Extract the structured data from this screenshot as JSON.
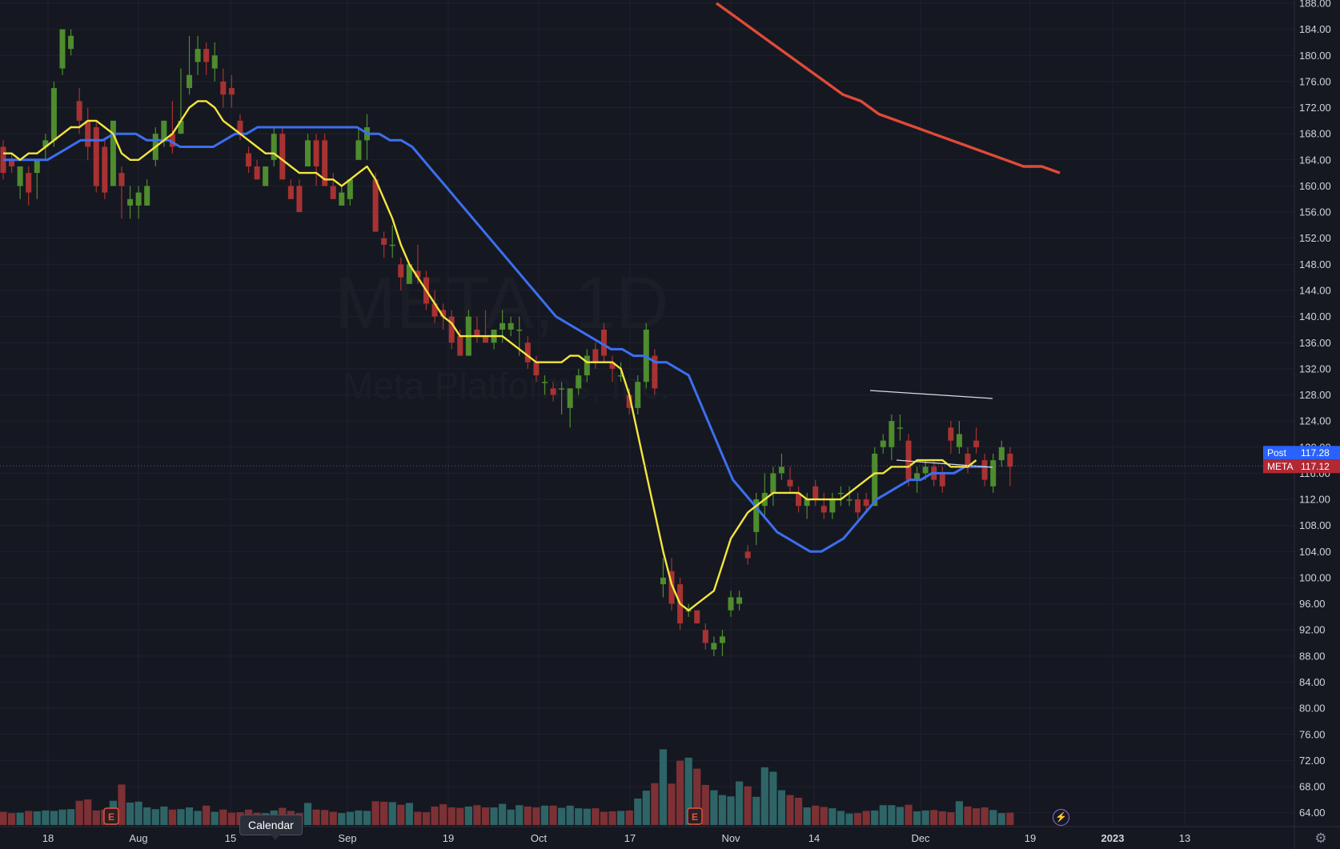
{
  "chart_data": {
    "type": "candlestick",
    "symbol": "META",
    "interval": "1D",
    "watermark_line1": "META, 1D",
    "watermark_line2": "Meta Platforms, Inc.",
    "price_axis_ticks": [
      "188.00",
      "184.00",
      "180.00",
      "176.00",
      "172.00",
      "168.00",
      "164.00",
      "160.00",
      "156.00",
      "152.00",
      "148.00",
      "144.00",
      "140.00",
      "136.00",
      "132.00",
      "128.00",
      "124.00",
      "120.00",
      "116.00",
      "112.00",
      "108.00",
      "104.00",
      "100.00",
      "96.00",
      "92.00",
      "88.00",
      "84.00",
      "80.00",
      "76.00",
      "72.00",
      "68.00",
      "64.00"
    ],
    "time_axis_labels": [
      "18",
      "Aug",
      "15",
      "Sep",
      "19",
      "Oct",
      "17",
      "Nov",
      "14",
      "Dec",
      "19",
      "2023",
      "13"
    ],
    "ylim": [
      62,
      188
    ],
    "post_label": "Post",
    "post_price": 117.28,
    "last_label": "META",
    "last_price": 117.12,
    "candles": [
      {
        "o": 166,
        "h": 167,
        "l": 161,
        "c": 162
      },
      {
        "o": 164,
        "h": 165,
        "l": 162,
        "c": 163
      },
      {
        "o": 160,
        "h": 163,
        "l": 158,
        "c": 163
      },
      {
        "o": 162,
        "h": 163,
        "l": 157,
        "c": 159
      },
      {
        "o": 162,
        "h": 164,
        "l": 158,
        "c": 164
      },
      {
        "o": 166,
        "h": 168,
        "l": 164,
        "c": 167
      },
      {
        "o": 167,
        "h": 176,
        "l": 166,
        "c": 175
      },
      {
        "o": 178,
        "h": 184,
        "l": 177,
        "c": 184
      },
      {
        "o": 181,
        "h": 184,
        "l": 180,
        "c": 183
      },
      {
        "o": 173,
        "h": 175,
        "l": 168,
        "c": 170
      },
      {
        "o": 170,
        "h": 172,
        "l": 164,
        "c": 166
      },
      {
        "o": 169,
        "h": 170,
        "l": 159,
        "c": 160
      },
      {
        "o": 166,
        "h": 167,
        "l": 158,
        "c": 159
      },
      {
        "o": 160,
        "h": 170,
        "l": 160,
        "c": 170
      },
      {
        "o": 162,
        "h": 163,
        "l": 155,
        "c": 160
      },
      {
        "o": 157,
        "h": 160,
        "l": 155,
        "c": 158
      },
      {
        "o": 157,
        "h": 160,
        "l": 155,
        "c": 159
      },
      {
        "o": 157,
        "h": 161,
        "l": 157,
        "c": 160
      },
      {
        "o": 164,
        "h": 169,
        "l": 163,
        "c": 168
      },
      {
        "o": 167,
        "h": 170,
        "l": 166,
        "c": 170
      },
      {
        "o": 168,
        "h": 173,
        "l": 165,
        "c": 166
      },
      {
        "o": 168,
        "h": 178,
        "l": 168,
        "c": 170
      },
      {
        "o": 175,
        "h": 183,
        "l": 174,
        "c": 177
      },
      {
        "o": 179,
        "h": 183,
        "l": 177,
        "c": 181
      },
      {
        "o": 181,
        "h": 182,
        "l": 177,
        "c": 179
      },
      {
        "o": 178,
        "h": 182,
        "l": 176,
        "c": 180
      },
      {
        "o": 176,
        "h": 178,
        "l": 172,
        "c": 174
      },
      {
        "o": 175,
        "h": 177,
        "l": 172,
        "c": 174
      },
      {
        "o": 170,
        "h": 171,
        "l": 167,
        "c": 168
      },
      {
        "o": 165,
        "h": 166,
        "l": 162,
        "c": 163
      },
      {
        "o": 163,
        "h": 164,
        "l": 161,
        "c": 161
      },
      {
        "o": 160,
        "h": 163,
        "l": 160,
        "c": 163
      },
      {
        "o": 164,
        "h": 169,
        "l": 163,
        "c": 168
      },
      {
        "o": 168,
        "h": 169,
        "l": 161,
        "c": 161
      },
      {
        "o": 160,
        "h": 161,
        "l": 158,
        "c": 158
      },
      {
        "o": 160,
        "h": 161,
        "l": 156,
        "c": 156
      },
      {
        "o": 163,
        "h": 168,
        "l": 163,
        "c": 167
      },
      {
        "o": 167,
        "h": 168,
        "l": 160,
        "c": 163
      },
      {
        "o": 167,
        "h": 168,
        "l": 160,
        "c": 160
      },
      {
        "o": 160,
        "h": 162,
        "l": 158,
        "c": 158
      },
      {
        "o": 157,
        "h": 160,
        "l": 157,
        "c": 159
      },
      {
        "o": 158,
        "h": 161,
        "l": 157,
        "c": 161
      },
      {
        "o": 164,
        "h": 169,
        "l": 164,
        "c": 167
      },
      {
        "o": 167,
        "h": 171,
        "l": 164,
        "c": 169
      },
      {
        "o": 161,
        "h": 162,
        "l": 153,
        "c": 153
      },
      {
        "o": 152,
        "h": 153,
        "l": 149,
        "c": 151
      },
      {
        "o": 151,
        "h": 154,
        "l": 149,
        "c": 151
      },
      {
        "o": 148,
        "h": 149,
        "l": 144,
        "c": 146
      },
      {
        "o": 145,
        "h": 148,
        "l": 145,
        "c": 148
      },
      {
        "o": 147,
        "h": 151,
        "l": 145,
        "c": 146
      },
      {
        "o": 146,
        "h": 147,
        "l": 141,
        "c": 142
      },
      {
        "o": 142,
        "h": 144,
        "l": 139,
        "c": 140
      },
      {
        "o": 141,
        "h": 142,
        "l": 138,
        "c": 140
      },
      {
        "o": 140,
        "h": 141,
        "l": 135,
        "c": 136
      },
      {
        "o": 137,
        "h": 138,
        "l": 134,
        "c": 134
      },
      {
        "o": 134,
        "h": 141,
        "l": 134,
        "c": 140
      },
      {
        "o": 138,
        "h": 140,
        "l": 136,
        "c": 137
      },
      {
        "o": 137,
        "h": 141,
        "l": 136,
        "c": 136
      },
      {
        "o": 136,
        "h": 138,
        "l": 135,
        "c": 138
      },
      {
        "o": 138,
        "h": 141,
        "l": 136,
        "c": 139
      },
      {
        "o": 138,
        "h": 140,
        "l": 137,
        "c": 139
      },
      {
        "o": 138,
        "h": 140,
        "l": 134,
        "c": 138
      },
      {
        "o": 136,
        "h": 137,
        "l": 132,
        "c": 133
      },
      {
        "o": 133,
        "h": 134,
        "l": 130,
        "c": 131
      },
      {
        "o": 130,
        "h": 131,
        "l": 128,
        "c": 130
      },
      {
        "o": 129,
        "h": 130,
        "l": 127,
        "c": 128
      },
      {
        "o": 129,
        "h": 130,
        "l": 125,
        "c": 129
      },
      {
        "o": 126,
        "h": 129,
        "l": 123,
        "c": 129
      },
      {
        "o": 129,
        "h": 132,
        "l": 128,
        "c": 131
      },
      {
        "o": 131,
        "h": 135,
        "l": 130,
        "c": 134
      },
      {
        "o": 135,
        "h": 136,
        "l": 132,
        "c": 133
      },
      {
        "o": 138,
        "h": 139,
        "l": 133,
        "c": 134
      },
      {
        "o": 133,
        "h": 134,
        "l": 130,
        "c": 132
      },
      {
        "o": 131,
        "h": 133,
        "l": 130,
        "c": 131
      },
      {
        "o": 128,
        "h": 129,
        "l": 125,
        "c": 126
      },
      {
        "o": 126,
        "h": 131,
        "l": 125,
        "c": 130
      },
      {
        "o": 130,
        "h": 139,
        "l": 129,
        "c": 138
      },
      {
        "o": 134,
        "h": 135,
        "l": 128,
        "c": 129
      },
      {
        "o": 99,
        "h": 103,
        "l": 97,
        "c": 100
      },
      {
        "o": 101,
        "h": 103,
        "l": 95,
        "c": 96
      },
      {
        "o": 99,
        "h": 100,
        "l": 92,
        "c": 93
      },
      {
        "o": 95,
        "h": 96,
        "l": 94,
        "c": 95
      },
      {
        "o": 95,
        "h": 95,
        "l": 93,
        "c": 93
      },
      {
        "o": 92,
        "h": 93,
        "l": 89,
        "c": 90
      },
      {
        "o": 89,
        "h": 91,
        "l": 88,
        "c": 90
      },
      {
        "o": 90,
        "h": 92,
        "l": 88,
        "c": 91
      },
      {
        "o": 95,
        "h": 98,
        "l": 94,
        "c": 97
      },
      {
        "o": 96,
        "h": 98,
        "l": 95,
        "c": 97
      },
      {
        "o": 104,
        "h": 105,
        "l": 102,
        "c": 103
      },
      {
        "o": 107,
        "h": 113,
        "l": 105,
        "c": 112
      },
      {
        "o": 111,
        "h": 116,
        "l": 109,
        "c": 113
      },
      {
        "o": 113,
        "h": 117,
        "l": 111,
        "c": 116
      },
      {
        "o": 116,
        "h": 119,
        "l": 115,
        "c": 117
      },
      {
        "o": 115,
        "h": 117,
        "l": 113,
        "c": 114
      },
      {
        "o": 113,
        "h": 114,
        "l": 110,
        "c": 111
      },
      {
        "o": 111,
        "h": 113,
        "l": 109,
        "c": 112
      },
      {
        "o": 114,
        "h": 115,
        "l": 111,
        "c": 112
      },
      {
        "o": 111,
        "h": 113,
        "l": 109,
        "c": 110
      },
      {
        "o": 110,
        "h": 113,
        "l": 109,
        "c": 112
      },
      {
        "o": 113,
        "h": 114,
        "l": 111,
        "c": 113
      },
      {
        "o": 112,
        "h": 114,
        "l": 111,
        "c": 112
      },
      {
        "o": 112,
        "h": 113,
        "l": 109,
        "c": 110
      },
      {
        "o": 112,
        "h": 113,
        "l": 110,
        "c": 111
      },
      {
        "o": 111,
        "h": 120,
        "l": 111,
        "c": 119
      },
      {
        "o": 120,
        "h": 122,
        "l": 119,
        "c": 121
      },
      {
        "o": 120,
        "h": 125,
        "l": 118,
        "c": 124
      },
      {
        "o": 123,
        "h": 125,
        "l": 121,
        "c": 123
      },
      {
        "o": 121,
        "h": 122,
        "l": 114,
        "c": 115
      },
      {
        "o": 115,
        "h": 117,
        "l": 113,
        "c": 116
      },
      {
        "o": 116,
        "h": 118,
        "l": 115,
        "c": 117
      },
      {
        "o": 117,
        "h": 118,
        "l": 114,
        "c": 115
      },
      {
        "o": 116,
        "h": 117,
        "l": 113,
        "c": 114
      },
      {
        "o": 123,
        "h": 124,
        "l": 119,
        "c": 121
      },
      {
        "o": 120,
        "h": 124,
        "l": 119,
        "c": 122
      },
      {
        "o": 119,
        "h": 120,
        "l": 116,
        "c": 117
      },
      {
        "o": 121,
        "h": 123,
        "l": 119,
        "c": 120
      },
      {
        "o": 118,
        "h": 119,
        "l": 114,
        "c": 115
      },
      {
        "o": 114,
        "h": 119,
        "l": 113,
        "c": 118
      },
      {
        "o": 118,
        "h": 121,
        "l": 117,
        "c": 120
      },
      {
        "o": 119,
        "h": 120,
        "l": 114,
        "c": 117
      }
    ],
    "volume_rel": [
      0.3,
      0.27,
      0.28,
      0.32,
      0.31,
      0.33,
      0.32,
      0.35,
      0.36,
      0.55,
      0.58,
      0.33,
      0.35,
      0.55,
      0.92,
      0.51,
      0.53,
      0.4,
      0.36,
      0.42,
      0.35,
      0.36,
      0.4,
      0.32,
      0.44,
      0.3,
      0.35,
      0.28,
      0.29,
      0.35,
      0.28,
      0.27,
      0.33,
      0.39,
      0.32,
      0.27,
      0.5,
      0.35,
      0.34,
      0.3,
      0.27,
      0.3,
      0.33,
      0.32,
      0.54,
      0.53,
      0.52,
      0.46,
      0.5,
      0.3,
      0.29,
      0.42,
      0.47,
      0.4,
      0.39,
      0.42,
      0.45,
      0.4,
      0.4,
      0.48,
      0.35,
      0.45,
      0.42,
      0.4,
      0.44,
      0.44,
      0.39,
      0.44,
      0.38,
      0.37,
      0.38,
      0.3,
      0.31,
      0.32,
      0.33,
      0.6,
      0.78,
      0.95,
      1.72,
      0.94,
      1.46,
      1.53,
      1.28,
      0.91,
      0.79,
      0.68,
      0.65,
      0.99,
      0.88,
      0.64,
      1.31,
      1.21,
      0.79,
      0.68,
      0.62,
      0.4,
      0.44,
      0.41,
      0.38,
      0.32,
      0.26,
      0.27,
      0.32,
      0.33,
      0.45,
      0.45,
      0.41,
      0.46,
      0.31,
      0.33,
      0.34,
      0.31,
      0.29,
      0.54,
      0.42,
      0.38,
      0.4,
      0.34,
      0.27,
      0.28,
      0.25,
      0.31
    ],
    "ma_fast": [
      165,
      165,
      164,
      165,
      165,
      166,
      167,
      168,
      169,
      169,
      170,
      170,
      169,
      168,
      165,
      164,
      164,
      165,
      166,
      167,
      168,
      170,
      172,
      173,
      173,
      172,
      170,
      169,
      168,
      167,
      166,
      165,
      165,
      164,
      163,
      162,
      162,
      162,
      161,
      161,
      160,
      161,
      162,
      163,
      161,
      158,
      155,
      151,
      148,
      146,
      144,
      142,
      140,
      139,
      137,
      137,
      137,
      137,
      137,
      137,
      136,
      135,
      134,
      133,
      133,
      133,
      133,
      134,
      134,
      133,
      133,
      133,
      133,
      132,
      128,
      122,
      116,
      110,
      104,
      99,
      96,
      95,
      96,
      97,
      98,
      102,
      106,
      108,
      110,
      111,
      112,
      113,
      113,
      113,
      113,
      112,
      112,
      112,
      112,
      112,
      113,
      114,
      115,
      116,
      116,
      117,
      117,
      117,
      118,
      118,
      118,
      118,
      117,
      117,
      117,
      118
    ],
    "ma_slow": [
      164,
      164,
      164,
      164,
      164,
      165,
      166,
      167,
      167,
      167,
      168,
      168,
      168,
      167,
      167,
      167,
      166,
      166,
      166,
      166,
      167,
      168,
      168,
      169,
      169,
      169,
      169,
      169,
      169,
      169,
      169,
      169,
      169,
      168,
      168,
      167,
      167,
      166,
      164,
      162,
      160,
      158,
      156,
      154,
      152,
      150,
      148,
      146,
      144,
      142,
      140,
      139,
      138,
      137,
      136,
      135,
      135,
      134,
      134,
      133,
      133,
      132,
      131,
      127,
      123,
      119,
      115,
      113,
      111,
      109,
      107,
      106,
      105,
      104,
      104,
      105,
      106,
      108,
      110,
      112,
      113,
      114,
      115,
      115,
      116,
      116,
      116,
      117,
      117,
      117
    ],
    "ma_long": [
      188,
      186,
      184,
      182,
      180,
      178,
      176,
      174,
      173,
      171,
      170,
      169,
      168,
      167,
      166,
      165,
      164,
      163,
      163,
      162
    ],
    "channel_upper": [
      [
        1087,
        488
      ],
      [
        1240,
        498
      ]
    ],
    "channel_lower": [
      [
        1120,
        575
      ],
      [
        1240,
        584
      ]
    ],
    "earnings_marker": "E",
    "colors": {
      "background": "#151821",
      "up": "#4e8c2e",
      "down": "#a83232",
      "vol_up": "#2e6466",
      "vol_down": "#7d3135",
      "ma_fast": "#f5e63c",
      "ma_slow": "#3d6ef0",
      "ma_long": "#e04a38",
      "post_badge": "#2962ff",
      "last_badge": "#b22833"
    }
  },
  "tooltip": {
    "label": "Calendar"
  },
  "icons": {
    "settings": "gear-icon",
    "alerts": "bolt-icon"
  }
}
